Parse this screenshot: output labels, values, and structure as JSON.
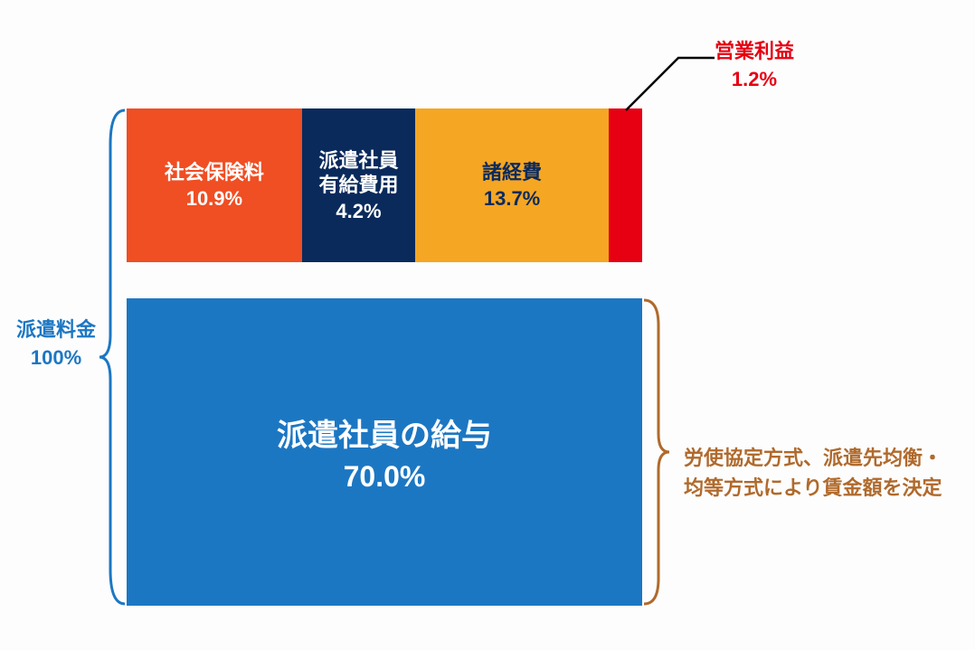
{
  "chart": {
    "type": "stacked-bar-breakdown",
    "background_color": "#fdfdfd",
    "total_label": "派遣料金",
    "total_pct": "100%",
    "total_label_color": "#1c77c3",
    "bracket_left_color": "#1c77c3",
    "top_segments": [
      {
        "label": "社会保険料",
        "pct": "10.9%",
        "width_pct": 34.0,
        "bg": "#f04e23",
        "fg": "#ffffff"
      },
      {
        "label": "派遣社員\n有給費用",
        "pct": "4.2%",
        "width_pct": 22.0,
        "bg": "#0a2a5c",
        "fg": "#ffffff"
      },
      {
        "label": "諸経費",
        "pct": "13.7%",
        "width_pct": 37.5,
        "bg": "#f5a623",
        "fg": "#0a2a5c"
      },
      {
        "label": "",
        "pct": "",
        "width_pct": 6.5,
        "bg": "#e60012",
        "fg": "#ffffff"
      }
    ],
    "callout": {
      "label": "営業利益",
      "pct": "1.2%",
      "color": "#e60012"
    },
    "bottom_segment": {
      "label": "派遣社員の給与",
      "pct": "70.0%",
      "bg": "#1c77c3",
      "fg": "#ffffff"
    },
    "right_note_line1": "労使協定方式、派遣先均衡・",
    "right_note_line2": "均等方式により賃金額を決定",
    "right_note_color": "#b06a2c",
    "bracket_right_color": "#b06a2c",
    "top_bar_height": 170,
    "gap_height": 40,
    "bottom_bar_height": 340
  }
}
